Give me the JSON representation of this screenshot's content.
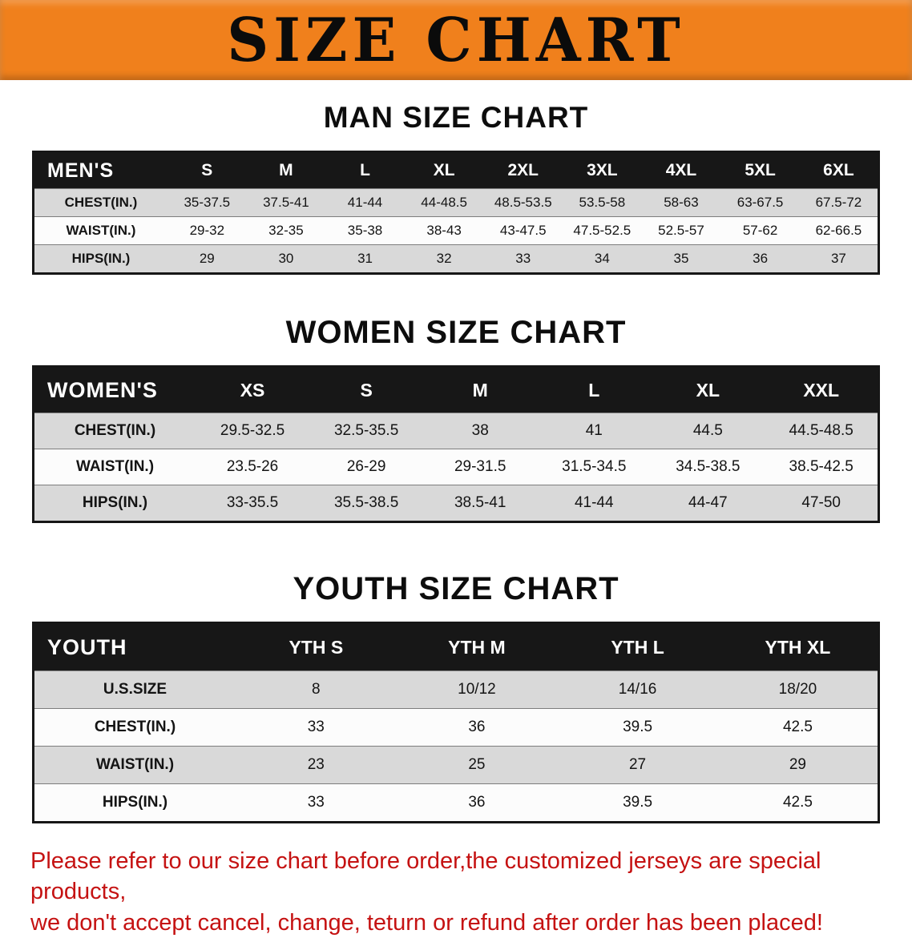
{
  "banner": {
    "title": "SIZE CHART"
  },
  "colors": {
    "banner_orange": "#f0801c",
    "header_black": "#171717",
    "row_gray": "#d9d9d9",
    "row_white": "#fcfcfc",
    "footer_red": "#c51212"
  },
  "tables": {
    "men": {
      "heading": "MAN SIZE CHART",
      "header": [
        "MEN'S",
        "S",
        "M",
        "L",
        "XL",
        "2XL",
        "3XL",
        "4XL",
        "5XL",
        "6XL"
      ],
      "rows": [
        {
          "label": "CHEST(IN.)",
          "values": [
            "35-37.5",
            "37.5-41",
            "41-44",
            "44-48.5",
            "48.5-53.5",
            "53.5-58",
            "58-63",
            "63-67.5",
            "67.5-72"
          ]
        },
        {
          "label": "WAIST(IN.)",
          "values": [
            "29-32",
            "32-35",
            "35-38",
            "38-43",
            "43-47.5",
            "47.5-52.5",
            "52.5-57",
            "57-62",
            "62-66.5"
          ]
        },
        {
          "label": "HIPS(IN.)",
          "values": [
            "29",
            "30",
            "31",
            "32",
            "33",
            "34",
            "35",
            "36",
            "37"
          ]
        }
      ]
    },
    "women": {
      "heading": "WOMEN SIZE CHART",
      "header": [
        "WOMEN'S",
        "XS",
        "S",
        "M",
        "L",
        "XL",
        "XXL"
      ],
      "rows": [
        {
          "label": "CHEST(IN.)",
          "values": [
            "29.5-32.5",
            "32.5-35.5",
            "38",
            "41",
            "44.5",
            "44.5-48.5"
          ]
        },
        {
          "label": "WAIST(IN.)",
          "values": [
            "23.5-26",
            "26-29",
            "29-31.5",
            "31.5-34.5",
            "34.5-38.5",
            "38.5-42.5"
          ]
        },
        {
          "label": "HIPS(IN.)",
          "values": [
            "33-35.5",
            "35.5-38.5",
            "38.5-41",
            "41-44",
            "44-47",
            "47-50"
          ]
        }
      ]
    },
    "youth": {
      "heading": "YOUTH SIZE CHART",
      "header": [
        "YOUTH",
        "YTH S",
        "YTH M",
        "YTH L",
        "YTH XL"
      ],
      "rows": [
        {
          "label": "U.S.SIZE",
          "values": [
            "8",
            "10/12",
            "14/16",
            "18/20"
          ]
        },
        {
          "label": "CHEST(IN.)",
          "values": [
            "33",
            "36",
            "39.5",
            "42.5"
          ]
        },
        {
          "label": "WAIST(IN.)",
          "values": [
            "23",
            "25",
            "27",
            "29"
          ]
        },
        {
          "label": "HIPS(IN.)",
          "values": [
            "33",
            "36",
            "39.5",
            "42.5"
          ]
        }
      ]
    }
  },
  "footer": {
    "line1": "Please refer to our size chart before order,the customized jerseys are special products,",
    "line2": "we don't accept cancel, change, teturn or refund after order has been placed!"
  }
}
